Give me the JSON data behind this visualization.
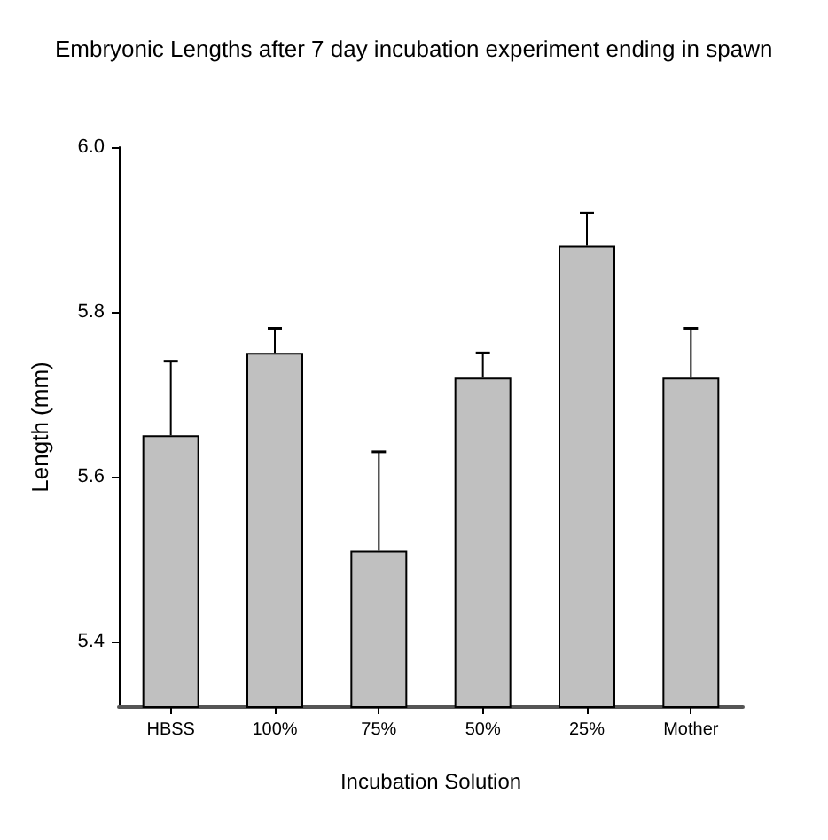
{
  "chart_data": {
    "type": "bar",
    "title": "Embryonic Lengths after 7 day incubation experiment ending in spawn",
    "xlabel": "Incubation Solution",
    "ylabel": "Length (mm)",
    "categories": [
      "HBSS",
      "100%",
      "75%",
      "50%",
      "25%",
      "Mother"
    ],
    "values": [
      5.65,
      5.75,
      5.51,
      5.72,
      5.88,
      5.72
    ],
    "errors": [
      [
        5.65,
        5.74
      ],
      [
        5.75,
        5.78
      ],
      [
        5.51,
        5.63
      ],
      [
        5.72,
        5.75
      ],
      [
        5.88,
        5.92
      ],
      [
        5.72,
        5.78
      ]
    ],
    "color": "#c0c0c0",
    "ylim": [
      5.32,
      6.0
    ],
    "yticks": [
      5.4,
      5.6,
      5.8,
      {
        "value": 6,
        "label": "6.0"
      }
    ],
    "grid": false
  }
}
